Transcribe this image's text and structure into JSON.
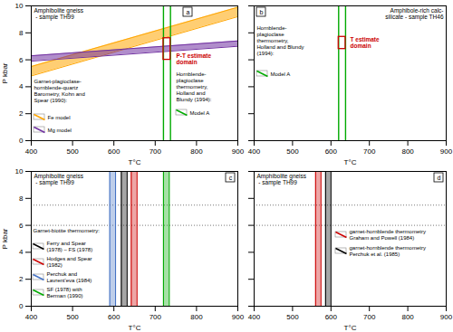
{
  "chart_data": [
    {
      "type": "line",
      "title": "Amphibolite gneiss\n - sample TH99",
      "panel_label": "a",
      "xlabel": "T°C",
      "ylabel": "P kbar",
      "xlim": [
        400,
        900
      ],
      "ylim": [
        0,
        10
      ],
      "xticks": [
        400,
        500,
        600,
        700,
        800,
        900
      ],
      "yticks": [
        0,
        2,
        4,
        6,
        8,
        10
      ],
      "grid": false,
      "series": [
        {
          "name": "Fe model",
          "type": "area",
          "color": "#ffa500",
          "x": [
            400,
            900
          ],
          "lower": [
            4.8,
            9.2
          ],
          "upper": [
            5.5,
            9.9
          ]
        },
        {
          "name": "Mg model",
          "type": "area",
          "color": "#7030a0",
          "x": [
            400,
            900
          ],
          "lower": [
            5.9,
            7.0
          ],
          "upper": [
            6.3,
            7.4
          ]
        },
        {
          "name": "Model A",
          "type": "vline",
          "color": "#00aa00",
          "x": [
            720,
            737
          ]
        },
        {
          "type": "rect",
          "color": "#cc0000",
          "x": [
            720,
            737
          ],
          "y": [
            6.0,
            7.6
          ]
        }
      ],
      "annotations": [
        {
          "text": "P-T estimate\ndomain",
          "color": "#cc0000"
        },
        {
          "text": "Garnet-plagioclase-\nhornblende-quartz\nBarometry, Kohn and\nSpear (1990):"
        },
        {
          "text": "Hornblende-\nplagioclase\nthermometry,\nHolland and\nBlundy (1994):"
        }
      ]
    },
    {
      "type": "line",
      "title": "Amphibole-rich calc-\nsilicate - sample TH46",
      "panel_label": "b",
      "xlabel": "T°C",
      "xlim": [
        400,
        900
      ],
      "ylim": [
        0,
        10
      ],
      "xticks": [
        400,
        500,
        600,
        700,
        800,
        900
      ],
      "yticks": [
        0,
        2,
        4,
        6,
        8,
        10
      ],
      "grid": false,
      "tick_labels": "x",
      "series": [
        {
          "name": "Model A",
          "type": "vline",
          "color": "#00aa00",
          "x": [
            620,
            638
          ]
        },
        {
          "type": "rect",
          "color": "#cc0000",
          "x": [
            620,
            638
          ],
          "y": [
            6.8,
            7.7
          ]
        }
      ],
      "annotations": [
        {
          "text": "T estimate\ndomain",
          "color": "#cc0000"
        },
        {
          "text": "Hornblende-\nplagioclase\nthermometry,\nHolland and Blundy\n(1994):"
        }
      ]
    },
    {
      "type": "line",
      "title": "Amphibolite gneiss\n - sample TH99",
      "panel_label": "c",
      "xlabel": "T°C",
      "ylabel": "P kbar",
      "xlim": [
        400,
        900
      ],
      "ylim": [
        0,
        10
      ],
      "xticks": [
        400,
        500,
        600,
        700,
        800,
        900
      ],
      "yticks": [
        0,
        2,
        4,
        6,
        8,
        10
      ],
      "grid": false,
      "legend_title": "Garnet-biotite thermometry:",
      "series": [
        {
          "type": "hline",
          "color": "#555555",
          "line_style": "dotted",
          "y": [
            7.5,
            6.0
          ]
        },
        {
          "name": "Ferry and Spear\n(1978) – FS (1978)",
          "type": "vband",
          "color": "#000000",
          "x": [
            618,
            632
          ],
          "y": [
            0,
            10
          ]
        },
        {
          "name": "Hodges and Spear\n(1982)",
          "type": "vband",
          "color": "#cc0000",
          "x": [
            642,
            656
          ],
          "y": [
            0,
            10
          ]
        },
        {
          "name": "Perchuk and\nLavrent'eva (1984)",
          "type": "vband",
          "color": "#4472c4",
          "x": [
            590,
            604
          ],
          "y": [
            0,
            10
          ]
        },
        {
          "name": "SF (1978) with\nBerman (1990)",
          "type": "vband",
          "color": "#00aa00",
          "x": [
            720,
            734
          ],
          "y": [
            0,
            10
          ]
        }
      ]
    },
    {
      "type": "line",
      "title": "Amphibolite gneiss\n - sample TH99",
      "panel_label": "d",
      "xlabel": "T°C",
      "xlim": [
        400,
        900
      ],
      "ylim": [
        0,
        10
      ],
      "xticks": [
        400,
        500,
        600,
        700,
        800,
        900
      ],
      "yticks": [
        0,
        2,
        4,
        6,
        8,
        10
      ],
      "grid": false,
      "tick_labels": "x",
      "series": [
        {
          "type": "hline",
          "color": "#555555",
          "line_style": "dotted",
          "y": [
            7.5,
            6.0
          ]
        },
        {
          "name": "garnet-hornblende thermometry\nGraham and Powell (1984)",
          "type": "vband",
          "color": "#cc0000",
          "x": [
            560,
            574
          ],
          "y": [
            0,
            10
          ]
        },
        {
          "name": "garnet-hornblende thermometry\nPerchuk et al. (1985)",
          "type": "vband",
          "color": "#000000",
          "x": [
            586,
            600
          ],
          "y": [
            0,
            10
          ]
        }
      ]
    }
  ]
}
